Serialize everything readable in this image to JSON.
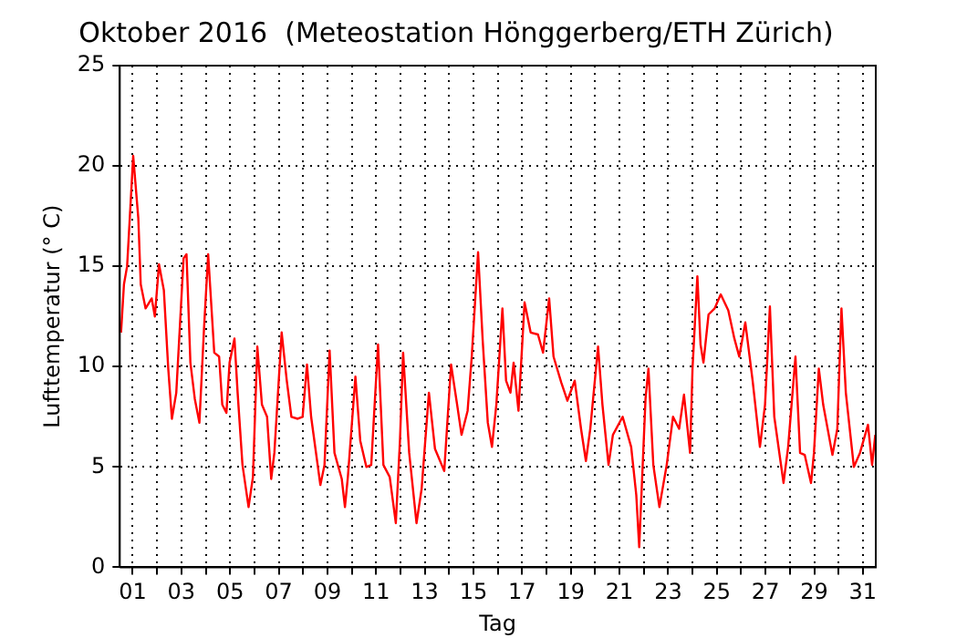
{
  "chart_data": {
    "type": "line",
    "title": "Oktober 2016  (Meteostation Hönggerberg/ETH Zürich)",
    "xlabel": "Tag",
    "ylabel": "Lufttemperatur (° C)",
    "x": [
      0.52,
      0.64,
      0.77,
      1.02,
      1.23,
      1.33,
      1.53,
      1.78,
      1.91,
      2.08,
      2.28,
      2.46,
      2.61,
      2.79,
      3.09,
      3.21,
      3.37,
      3.55,
      3.74,
      3.93,
      4.1,
      4.35,
      4.55,
      4.68,
      4.85,
      4.98,
      5.18,
      5.31,
      5.51,
      5.76,
      5.94,
      6.12,
      6.31,
      6.52,
      6.69,
      6.82,
      7.12,
      7.33,
      7.52,
      7.78,
      7.98,
      8.16,
      8.33,
      8.71,
      8.88,
      9.09,
      9.29,
      9.59,
      9.72,
      9.84,
      10.15,
      10.35,
      10.6,
      10.8,
      11.08,
      11.3,
      11.56,
      11.81,
      11.98,
      12.11,
      12.36,
      12.66,
      12.87,
      13.17,
      13.42,
      13.8,
      14.08,
      14.33,
      14.51,
      14.76,
      14.93,
      15.19,
      15.38,
      15.59,
      15.76,
      15.94,
      16.19,
      16.34,
      16.52,
      16.65,
      16.85,
      17.1,
      17.35,
      17.65,
      17.86,
      18.11,
      18.29,
      18.61,
      18.86,
      19.16,
      19.42,
      19.62,
      19.8,
      20.12,
      20.3,
      20.55,
      20.73,
      21.13,
      21.48,
      21.69,
      21.81,
      22.07,
      22.19,
      22.39,
      22.64,
      22.94,
      23.2,
      23.45,
      23.65,
      23.9,
      24.0,
      24.2,
      24.33,
      24.45,
      24.66,
      24.91,
      25.16,
      25.47,
      25.72,
      25.92,
      26.17,
      26.47,
      26.77,
      26.98,
      27.18,
      27.36,
      27.74,
      27.93,
      28.23,
      28.42,
      28.61,
      28.87,
      28.99,
      29.19,
      29.37,
      29.75,
      29.95,
      30.12,
      30.3,
      30.63,
      30.88,
      31.21,
      31.38,
      31.51
    ],
    "values": [
      11.7,
      14.1,
      15.0,
      20.5,
      17.4,
      14.1,
      12.9,
      13.4,
      12.5,
      15.1,
      13.8,
      9.9,
      7.4,
      8.7,
      15.4,
      15.6,
      10.2,
      8.4,
      7.2,
      11.9,
      15.6,
      10.7,
      10.5,
      8.1,
      7.7,
      10.2,
      11.4,
      8.7,
      5.1,
      3.0,
      4.5,
      11.0,
      8.1,
      7.5,
      4.4,
      5.7,
      11.7,
      9.3,
      7.5,
      7.4,
      7.5,
      10.1,
      7.5,
      4.1,
      5.1,
      10.8,
      5.7,
      4.4,
      3.0,
      4.5,
      9.5,
      6.3,
      5.0,
      5.1,
      11.1,
      5.1,
      4.5,
      2.2,
      6.3,
      10.7,
      5.7,
      2.2,
      3.9,
      8.7,
      5.9,
      4.8,
      10.1,
      8.1,
      6.6,
      7.8,
      10.5,
      15.7,
      11.3,
      7.2,
      6.0,
      8.1,
      12.9,
      9.3,
      8.7,
      10.2,
      7.8,
      13.2,
      11.7,
      11.6,
      10.7,
      13.4,
      10.5,
      9.2,
      8.3,
      9.3,
      6.9,
      5.3,
      6.9,
      11.0,
      8.1,
      5.1,
      6.6,
      7.5,
      6.0,
      3.6,
      1.0,
      8.4,
      9.9,
      5.1,
      3.0,
      5.1,
      7.5,
      6.9,
      8.6,
      5.7,
      9.9,
      14.5,
      11.1,
      10.2,
      12.6,
      12.9,
      13.6,
      12.8,
      11.4,
      10.5,
      12.2,
      9.3,
      6.0,
      8.1,
      13.0,
      7.5,
      4.2,
      6.0,
      10.5,
      5.7,
      5.6,
      4.2,
      5.7,
      9.9,
      8.1,
      5.6,
      6.9,
      12.9,
      8.7,
      5.0,
      5.7,
      7.1,
      5.1,
      6.6
    ],
    "color": "#ff0000",
    "marker": "none",
    "grid": true,
    "xlim": [
      0.47,
      31.53
    ],
    "xticks": [
      {
        "value": 1,
        "label": "01"
      },
      {
        "value": 2,
        "label": null
      },
      {
        "value": 3,
        "label": "03"
      },
      {
        "value": 4,
        "label": null
      },
      {
        "value": 5,
        "label": "05"
      },
      {
        "value": 6,
        "label": null
      },
      {
        "value": 7,
        "label": "07"
      },
      {
        "value": 8,
        "label": null
      },
      {
        "value": 9,
        "label": "09"
      },
      {
        "value": 10,
        "label": null
      },
      {
        "value": 11,
        "label": "11"
      },
      {
        "value": 12,
        "label": null
      },
      {
        "value": 13,
        "label": "13"
      },
      {
        "value": 14,
        "label": null
      },
      {
        "value": 15,
        "label": "15"
      },
      {
        "value": 16,
        "label": null
      },
      {
        "value": 17,
        "label": "17"
      },
      {
        "value": 18,
        "label": null
      },
      {
        "value": 19,
        "label": "19"
      },
      {
        "value": 20,
        "label": null
      },
      {
        "value": 21,
        "label": "21"
      },
      {
        "value": 22,
        "label": null
      },
      {
        "value": 23,
        "label": "23"
      },
      {
        "value": 24,
        "label": null
      },
      {
        "value": 25,
        "label": "25"
      },
      {
        "value": 26,
        "label": null
      },
      {
        "value": 27,
        "label": "27"
      },
      {
        "value": 28,
        "label": null
      },
      {
        "value": 29,
        "label": "29"
      },
      {
        "value": 30,
        "label": null
      },
      {
        "value": 31,
        "label": "31"
      }
    ],
    "ylim": [
      0,
      25
    ],
    "yticks": [
      0,
      5,
      10,
      15,
      20,
      25
    ]
  }
}
